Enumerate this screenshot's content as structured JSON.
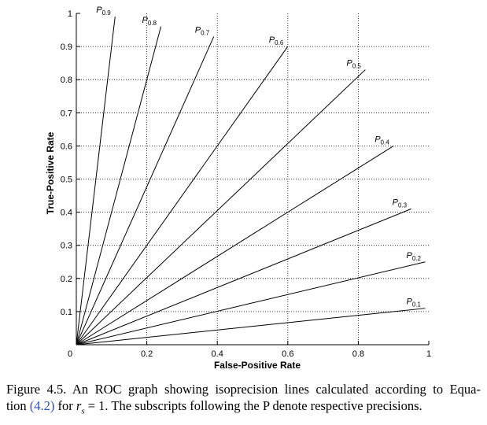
{
  "chart_data": {
    "type": "line",
    "xlabel": "False-Positive Rate",
    "ylabel": "True-Positive Rate",
    "xlim": [
      0,
      1
    ],
    "ylim": [
      0,
      1
    ],
    "xticks": [
      0,
      0.2,
      0.4,
      0.6,
      0.8,
      1
    ],
    "yticks": [
      0.1,
      0.2,
      0.3,
      0.4,
      0.5,
      0.6,
      0.7,
      0.8,
      0.9,
      1
    ],
    "grid": true,
    "color": "#000000",
    "series": [
      {
        "name": "P0.9",
        "x": [
          0,
          0.11
        ],
        "values": [
          0,
          0.99
        ]
      },
      {
        "name": "P0.8",
        "x": [
          0,
          0.24
        ],
        "values": [
          0,
          0.96
        ]
      },
      {
        "name": "P0.7",
        "x": [
          0,
          0.39
        ],
        "values": [
          0,
          0.93
        ]
      },
      {
        "name": "P0.6",
        "x": [
          0,
          0.6
        ],
        "values": [
          0,
          0.9
        ]
      },
      {
        "name": "P0.5",
        "x": [
          0,
          0.82
        ],
        "values": [
          0,
          0.83
        ]
      },
      {
        "name": "P0.4",
        "x": [
          0,
          0.9
        ],
        "values": [
          0,
          0.6
        ]
      },
      {
        "name": "P0.3",
        "x": [
          0,
          0.95
        ],
        "values": [
          0,
          0.41
        ]
      },
      {
        "name": "P0.2",
        "x": [
          0,
          0.99
        ],
        "values": [
          0,
          0.25
        ]
      },
      {
        "name": "P0.1",
        "x": [
          0,
          0.99
        ],
        "values": [
          0,
          0.11
        ]
      }
    ]
  },
  "caption": {
    "line1": "Figure 4.5. An ROC graph showing isoprecision lines calculated according to Equa-",
    "tion": "tion",
    "ref": "(4.2)",
    "for": "for",
    "r": "r",
    "sub": "s",
    "rest": "= 1. The subscripts following the P denote respective precisions."
  }
}
